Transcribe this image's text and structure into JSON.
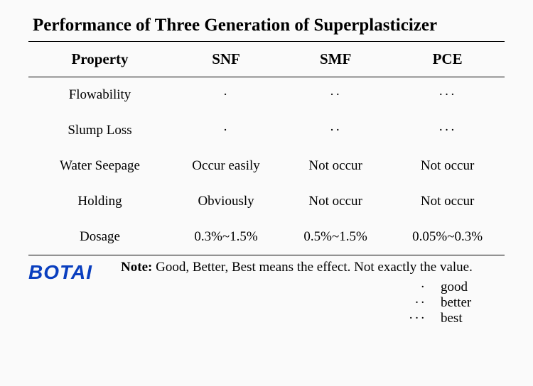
{
  "title": "Performance of Three Generation of Superplasticizer",
  "table": {
    "headers": [
      "Property",
      "SNF",
      "SMF",
      "PCE"
    ],
    "col_widths": [
      "30%",
      "23%",
      "23%",
      "24%"
    ],
    "rows": [
      {
        "property": "Flowability",
        "snf": "·",
        "smf": "··",
        "pce": "···"
      },
      {
        "property": "Slump Loss",
        "snf": "·",
        "smf": "··",
        "pce": "···"
      },
      {
        "property": "Water Seepage",
        "snf": "Occur easily",
        "smf": "Not occur",
        "pce": "Not occur"
      },
      {
        "property": "Holding",
        "snf": "Obviously",
        "smf": "Not occur",
        "pce": "Not occur"
      },
      {
        "property": "Dosage",
        "snf": "0.3%~1.5%",
        "smf": "0.5%~1.5%",
        "pce": "0.05%~0.3%"
      }
    ]
  },
  "logo_text": "BOTAI",
  "note": {
    "label": "Note:",
    "text": "Good, Better, Best means the effect. Not exactly the value."
  },
  "legend": [
    {
      "symbol": "·",
      "label": "good"
    },
    {
      "symbol": "··",
      "label": "better"
    },
    {
      "symbol": "···",
      "label": "best"
    }
  ],
  "colors": {
    "background": "#fafafa",
    "text": "#000000",
    "rule": "#000000",
    "logo": "#0a3fbf"
  },
  "fonts": {
    "body": "Times New Roman",
    "logo": "Arial"
  }
}
